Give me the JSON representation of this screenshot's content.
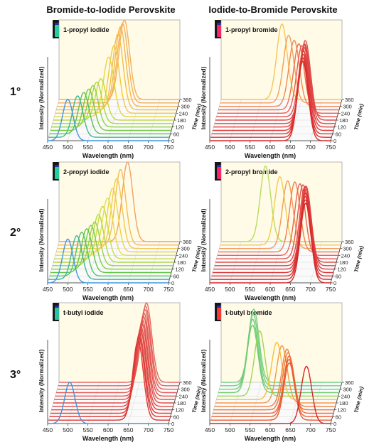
{
  "figure": {
    "column_titles": [
      "Bromide-to-Iodide Perovskite",
      "Iodide-to-Bromide Perovskite"
    ],
    "row_labels": [
      "1°",
      "2°",
      "3°"
    ],
    "colors": {
      "panel_background": "#fffbe6",
      "grid": "#d6d6d6",
      "photo_background": "#161616",
      "cap": "#2a2ab0"
    }
  },
  "chart_data": [
    {
      "type": "line",
      "panel_label": "1-propyl iodide",
      "xlabel": "Wavelength (nm)",
      "ylabel": "Intensity (Normalized)",
      "zlabel": "Time (min)",
      "xlim": [
        450,
        750
      ],
      "xticks": [
        450,
        500,
        550,
        600,
        650,
        700,
        750
      ],
      "time_ticks": [
        0,
        60,
        120,
        180,
        240,
        300,
        360
      ],
      "times": [
        0,
        30,
        60,
        90,
        120,
        150,
        180,
        210,
        240,
        270,
        300,
        330,
        360
      ],
      "peaks": [
        500,
        522,
        535,
        545,
        553,
        560,
        568,
        585,
        596,
        603,
        607,
        610,
        612
      ],
      "peak_heights": [
        0.52,
        0.52,
        0.52,
        0.52,
        0.52,
        0.52,
        0.52,
        0.75,
        0.85,
        0.95,
        1,
        1,
        1
      ],
      "vial_colors": [
        "#1ad69e",
        "#27e36b",
        "#38e636",
        "#6ae524",
        "#9fe31f",
        "#d3d617",
        "#ffd21a",
        "#ffb31c",
        "#ff8c1a",
        "#ff6a1a",
        "#ff4a1a",
        "#f23a1f",
        "#f0301f"
      ]
    },
    {
      "type": "line",
      "panel_label": "1-propyl bromide",
      "xlabel": "Wavelength (nm)",
      "ylabel": "Intensity (Normalized)",
      "zlabel": "Time (min)",
      "xlim": [
        450,
        750
      ],
      "xticks": [
        450,
        500,
        550,
        600,
        650,
        700,
        750
      ],
      "time_ticks": [
        0,
        60,
        120,
        180,
        240,
        300,
        360
      ],
      "times": [
        0,
        30,
        60,
        90,
        120,
        150,
        180,
        210,
        240,
        270,
        300,
        330,
        360
      ],
      "peaks": [
        681,
        679,
        677,
        676,
        675,
        674,
        673,
        668,
        660,
        650,
        636,
        620,
        601
      ],
      "peak_heights": [
        1,
        1,
        1,
        1,
        1,
        1,
        1,
        0.9,
        0.85,
        0.83,
        0.83,
        0.85,
        0.95
      ],
      "vial_colors": [
        "#ff1f66",
        "#ff2270",
        "#ff2277",
        "#ff2479",
        "#ff267b",
        "#ff287c",
        "#ff2a7d",
        "#ff2c7e",
        "#ff2e80",
        "#ff3082",
        "#ff2e78",
        "#ffe25a",
        "#ff3a7a"
      ]
    },
    {
      "type": "line",
      "panel_label": "2-propyl iodide",
      "xlabel": "Wavelength (nm)",
      "ylabel": "Intensity (Normalized)",
      "zlabel": "Time (min)",
      "xlim": [
        450,
        750
      ],
      "xticks": [
        450,
        500,
        550,
        600,
        650,
        700,
        750
      ],
      "time_ticks": [
        0,
        60,
        120,
        180,
        240,
        300,
        360
      ],
      "times": [
        0,
        30,
        60,
        90,
        120,
        150,
        180,
        210,
        240,
        270,
        300,
        330,
        360
      ],
      "peaks": [
        500,
        520,
        530,
        540,
        548,
        555,
        562,
        570,
        580,
        590,
        598,
        605,
        620
      ],
      "peak_heights": [
        0.55,
        0.55,
        0.55,
        0.55,
        0.55,
        0.55,
        0.6,
        0.66,
        0.72,
        0.8,
        0.88,
        0.95,
        1
      ],
      "vial_colors": [
        "#1ad69e",
        "#27e36b",
        "#38e636",
        "#6ae524",
        "#9fe31f",
        "#d3d617",
        "#ffd21a",
        "#ffb31c",
        "#ff8c1a",
        "#ff6a1a",
        "#ff4a1a",
        "#f23a1f",
        "#f0301f"
      ]
    },
    {
      "type": "line",
      "panel_label": "2-propyl bromide",
      "xlabel": "Wavelength (nm)",
      "ylabel": "Intensity (Normalized)",
      "zlabel": "Time (min)",
      "xlim": [
        450,
        750
      ],
      "xticks": [
        450,
        500,
        550,
        600,
        650,
        700,
        750
      ],
      "time_ticks": [
        0,
        60,
        120,
        180,
        240,
        300,
        360
      ],
      "times": [
        0,
        30,
        60,
        90,
        120,
        150,
        180,
        210,
        240,
        270,
        300,
        330,
        360
      ],
      "peaks": [
        688,
        685,
        683,
        681,
        679,
        677,
        672,
        665,
        655,
        640,
        620,
        598,
        560
      ],
      "peak_heights": [
        1,
        1,
        1,
        1,
        1,
        1,
        0.95,
        0.93,
        0.9,
        0.88,
        0.85,
        0.86,
        0.95
      ],
      "vial_colors": [
        "#ff1f66",
        "#ff2270",
        "#ff2277",
        "#ff2479",
        "#ff267b",
        "#ff287c",
        "#ff2a7d",
        "#ff2c7e",
        "#ff2e80",
        "#ff3082",
        "#ff2e78",
        "#ffe25a",
        "#ff3a7a"
      ]
    },
    {
      "type": "line",
      "panel_label": "t-butyl iodide",
      "xlabel": "Wavelength (nm)",
      "ylabel": "Intensity (Normalized)",
      "zlabel": "Time (min)",
      "xlim": [
        450,
        750
      ],
      "xticks": [
        450,
        500,
        550,
        600,
        650,
        700,
        750
      ],
      "time_ticks": [
        0,
        60,
        120,
        180,
        240,
        300,
        360
      ],
      "times": [
        0,
        30,
        60,
        90,
        120,
        150,
        180,
        210,
        240,
        270,
        300,
        330,
        360
      ],
      "peaks": [
        505,
        672,
        672,
        671,
        671,
        670,
        670,
        669,
        669,
        668,
        668,
        667,
        667
      ],
      "peak_heights": [
        0.52,
        1,
        1,
        1,
        1,
        1,
        1,
        1,
        1,
        1,
        1,
        1,
        1
      ],
      "vial_colors": [
        "#24c8a0",
        "#ff1f4a",
        "#ff2a55",
        "#ff3366",
        "#ff3d70",
        "#ff4478",
        "#ff5585",
        "#ff6690",
        "#dddddd",
        "#d9d9d9",
        "#d5d5d5",
        "#d1d1d1",
        "#cccccc"
      ]
    },
    {
      "type": "line",
      "panel_label": "t-butyl bromide",
      "xlabel": "Wavelength (nm)",
      "ylabel": "Intensity (Normalized)",
      "zlabel": "Time (min)",
      "xlim": [
        450,
        750
      ],
      "xticks": [
        450,
        500,
        550,
        600,
        650,
        700,
        750
      ],
      "time_ticks": [
        0,
        60,
        120,
        180,
        240,
        300,
        360
      ],
      "times": [
        0,
        30,
        60,
        90,
        120,
        150,
        180,
        210,
        240,
        270,
        300,
        330,
        360
      ],
      "peaks": [
        690,
        645,
        642,
        640,
        635,
        630,
        615,
        600,
        555,
        535,
        533,
        532,
        531
      ],
      "peak_heights": [
        0.72,
        0.72,
        0.72,
        0.72,
        0.72,
        0.72,
        0.72,
        0.72,
        0.82,
        0.85,
        0.88,
        0.9,
        0.92
      ],
      "vial_colors": [
        "#ff3333",
        "#2bd94a",
        "#2bd94a",
        "#2bd94a",
        "#2bd94a",
        "#2bd94a",
        "#2bd94a",
        "#2bd94a",
        "#2bd94a",
        "#2bd94a",
        "#2bd94a",
        "#2bd94a",
        "#2bd94a"
      ]
    }
  ]
}
